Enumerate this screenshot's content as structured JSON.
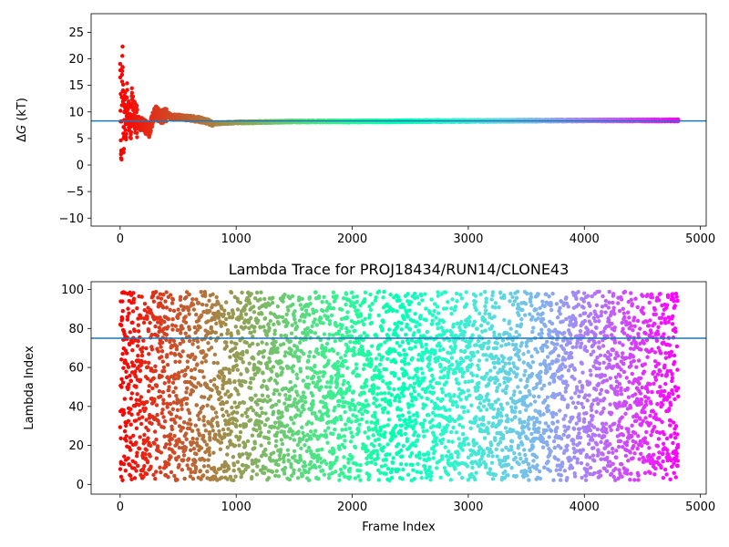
{
  "chart_data": [
    {
      "type": "scatter",
      "title": "",
      "xlabel": "",
      "ylabel": "ΔG (kT)",
      "xlim": [
        -250,
        5050
      ],
      "ylim": [
        -11.5,
        28.5
      ],
      "xticks": [
        0,
        1000,
        2000,
        3000,
        4000,
        5000
      ],
      "yticks": [
        -10,
        -5,
        0,
        5,
        10,
        15,
        20,
        25
      ],
      "colormap": "rainbow",
      "n_points": 4810,
      "hline": {
        "y": 8.3,
        "color": "#1f77b4"
      },
      "series": [
        {
          "description": "running free energy estimate per frame; converges to ~8.3 kT",
          "x": [
            0,
            10,
            20,
            30,
            40,
            50,
            60,
            70,
            80,
            90,
            100,
            120,
            150,
            200,
            250,
            300,
            350,
            400,
            450,
            500,
            600,
            700,
            800,
            900,
            1000,
            1500,
            2000,
            3000,
            4000,
            4810
          ],
          "y": [
            20.0,
            0.0,
            22.3,
            4.0,
            12.0,
            6.0,
            12.5,
            10.0,
            8.5,
            5.0,
            12.5,
            9.5,
            8.0,
            7.5,
            6.5,
            10.0,
            9.0,
            9.5,
            9.0,
            9.0,
            8.8,
            8.5,
            7.8,
            7.9,
            8.0,
            8.2,
            8.2,
            8.3,
            8.4,
            8.4
          ]
        }
      ]
    },
    {
      "type": "scatter",
      "title": "Lambda Trace for PROJ18434/RUN14/CLONE43",
      "xlabel": "Frame Index",
      "ylabel": "Lambda Index",
      "xlim": [
        -250,
        5050
      ],
      "ylim": [
        -5,
        104
      ],
      "xticks": [
        0,
        1000,
        2000,
        3000,
        4000,
        5000
      ],
      "yticks": [
        0,
        20,
        40,
        60,
        80,
        100
      ],
      "colormap": "rainbow",
      "n_points": 4810,
      "lambda_range": [
        2,
        99
      ],
      "hline": {
        "y": 75,
        "color": "#1f77b4"
      },
      "series": [
        {
          "description": "lambda index visited at each frame; uniformly spread between 2 and 99"
        }
      ]
    }
  ]
}
